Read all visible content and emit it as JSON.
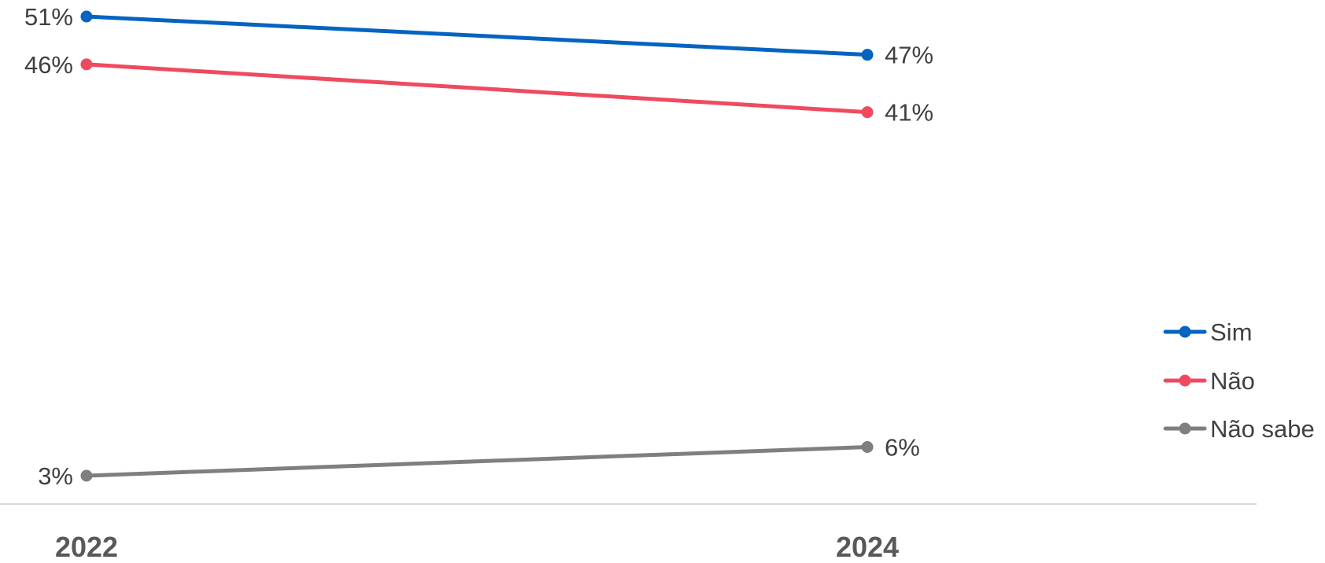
{
  "chart_data": {
    "type": "line",
    "title": "",
    "xlabel": "",
    "ylabel": "",
    "categories": [
      "2022",
      "2024"
    ],
    "ylim": [
      0,
      55
    ],
    "grid": false,
    "legend_position": "right",
    "series": [
      {
        "name": "Sim",
        "values": [
          51,
          47
        ],
        "labels": [
          "51%",
          "47%"
        ],
        "color": "#0563C1"
      },
      {
        "name": "Não",
        "values": [
          46,
          41
        ],
        "labels": [
          "46%",
          "41%"
        ],
        "color": "#EF4A5F"
      },
      {
        "name": "Não sabe",
        "values": [
          3,
          6
        ],
        "labels": [
          "3%",
          "6%"
        ],
        "color": "#7F7F7F"
      }
    ],
    "axis_color": "#D9D9D9"
  }
}
